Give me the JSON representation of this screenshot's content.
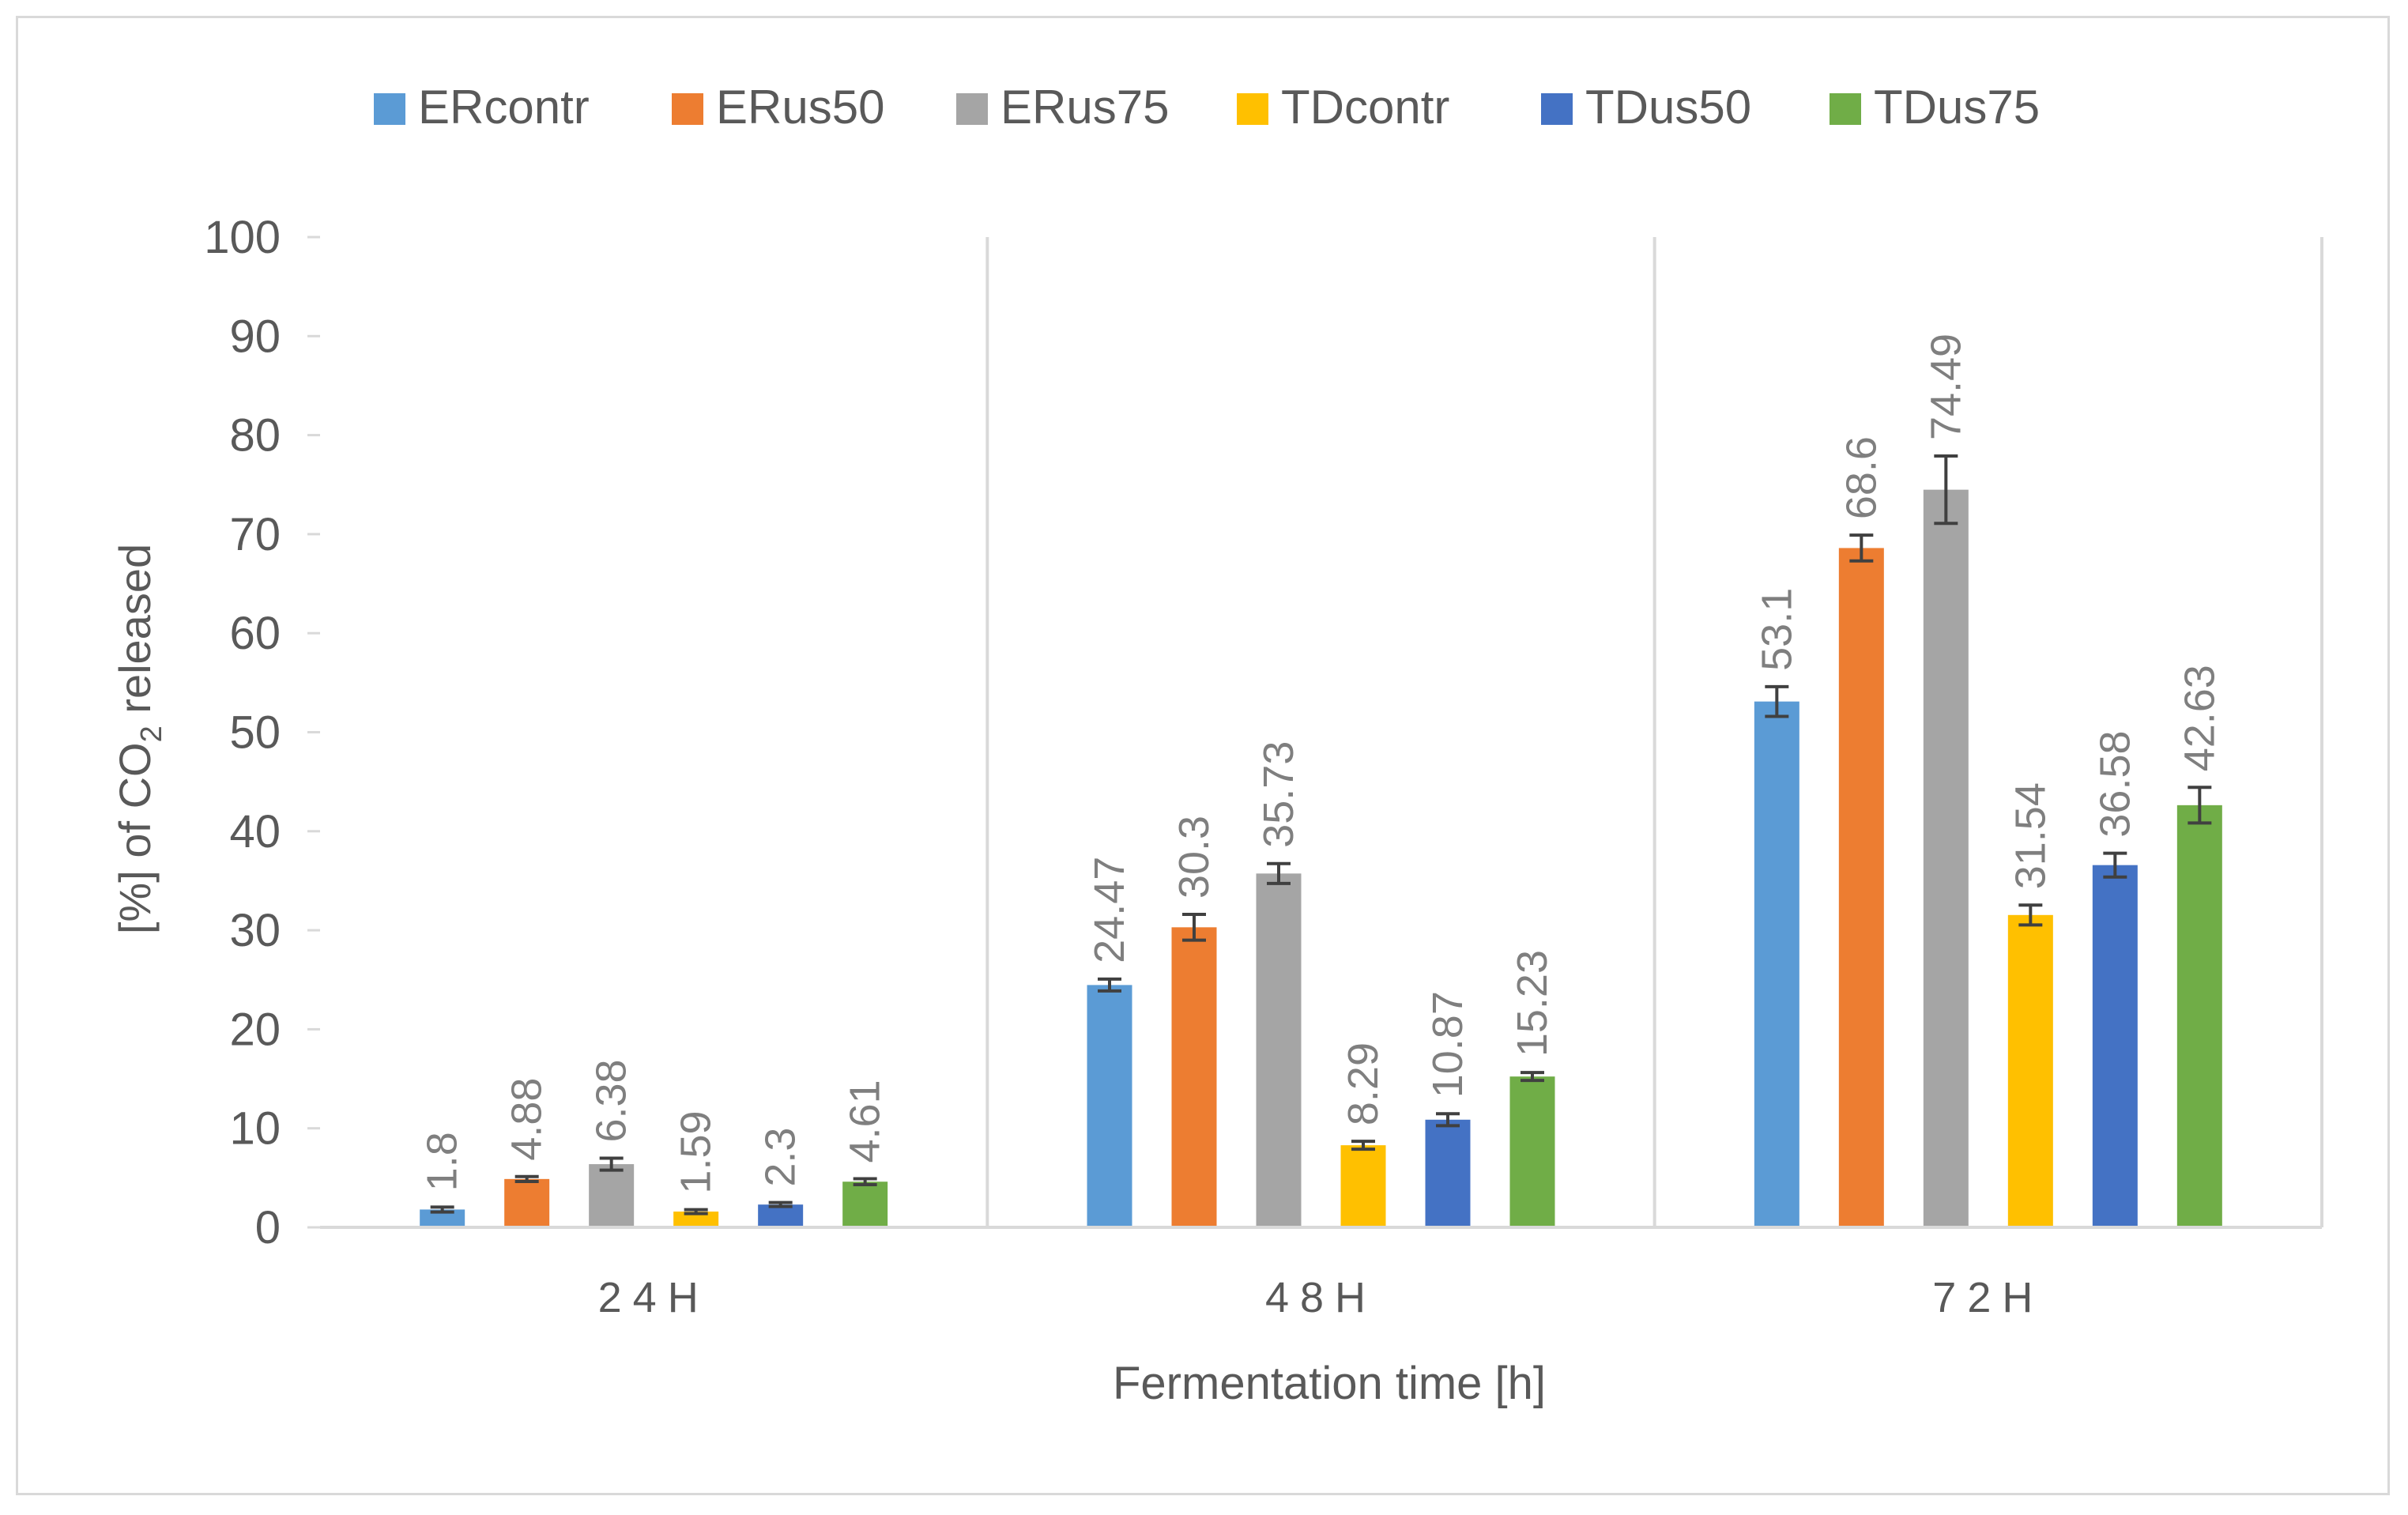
{
  "chart_data": {
    "type": "bar",
    "title": "",
    "xlabel": "Fermentation time [h]",
    "ylabel": {
      "prefix": "[%] of CO",
      "subscript": "2",
      "suffix": " released"
    },
    "categories": [
      "24H",
      "48H",
      "72H"
    ],
    "ylim": [
      0,
      100
    ],
    "yticks": [
      0,
      10,
      20,
      30,
      40,
      50,
      60,
      70,
      80,
      90,
      100
    ],
    "legend_position": "top",
    "grid": false,
    "category_separators": true,
    "series": [
      {
        "name": "ERcontr",
        "color": "#5b9bd5",
        "values": [
          1.8,
          24.47,
          53.1
        ],
        "labels": [
          "1.8",
          "24.47",
          "53.1"
        ],
        "errors": [
          0.25,
          0.6,
          1.5
        ]
      },
      {
        "name": "ERus50",
        "color": "#ed7d31",
        "values": [
          4.88,
          30.3,
          68.6
        ],
        "labels": [
          "4.88",
          "30.3",
          "68.6"
        ],
        "errors": [
          0.25,
          1.3,
          1.3
        ]
      },
      {
        "name": "ERus75",
        "color": "#a5a5a5",
        "values": [
          6.38,
          35.73,
          74.49
        ],
        "labels": [
          "6.38",
          "35.73",
          "74.49"
        ],
        "errors": [
          0.6,
          1.0,
          3.4
        ]
      },
      {
        "name": "TDcontr",
        "color": "#ffc000",
        "values": [
          1.59,
          8.29,
          31.54
        ],
        "labels": [
          "1.59",
          "8.29",
          "31.54"
        ],
        "errors": [
          0.2,
          0.4,
          1.0
        ]
      },
      {
        "name": "TDus50",
        "color": "#4472c4",
        "values": [
          2.3,
          10.87,
          36.58
        ],
        "labels": [
          "2.3",
          "10.87",
          "36.58"
        ],
        "errors": [
          0.2,
          0.6,
          1.2
        ]
      },
      {
        "name": "TDus75",
        "color": "#70ad47",
        "values": [
          4.61,
          15.23,
          42.63
        ],
        "labels": [
          "4.61",
          "15.23",
          "42.63"
        ],
        "errors": [
          0.3,
          0.4,
          1.8
        ]
      }
    ]
  }
}
